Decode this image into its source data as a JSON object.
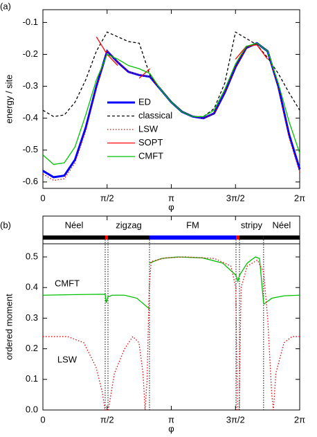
{
  "chart_data": [
    {
      "type": "line",
      "panel_label": "(a)",
      "ylabel": "energy / site",
      "xlabel": "φ",
      "legend": "center",
      "xlim": [
        0,
        6.2832
      ],
      "ylim": [
        -0.62,
        -0.06
      ],
      "xticks": [
        0,
        {
          "value": 1.5708,
          "label": "π/2"
        },
        {
          "value": 3.1416,
          "label": "π"
        },
        {
          "value": 4.7124,
          "label": "3π/2"
        },
        {
          "value": 6.2832,
          "label": "2π"
        }
      ],
      "yticks": [
        -0.1,
        -0.2,
        -0.3,
        -0.4,
        -0.5,
        -0.6
      ],
      "x": [
        0,
        0.2618,
        0.5236,
        0.7854,
        1.0472,
        1.309,
        1.5708,
        1.8326,
        2.0944,
        2.3562,
        2.618,
        2.8798,
        3.1416,
        3.4034,
        3.6652,
        3.927,
        4.1888,
        4.4506,
        4.7124,
        4.9742,
        5.236,
        5.4978,
        5.7596,
        6.0214,
        6.2832
      ],
      "series": [
        {
          "name": "ED",
          "color": "#0000ff",
          "style": "thick",
          "values": [
            -0.565,
            -0.585,
            -0.58,
            -0.53,
            -0.43,
            -0.3,
            -0.19,
            -0.225,
            -0.255,
            -0.265,
            -0.27,
            -0.31,
            -0.35,
            -0.38,
            -0.395,
            -0.4,
            -0.385,
            -0.32,
            -0.24,
            -0.18,
            -0.165,
            -0.19,
            -0.3,
            -0.45,
            -0.56
          ]
        },
        {
          "name": "classical",
          "color": "#000000",
          "style": "dashed",
          "values": [
            -0.375,
            -0.395,
            -0.39,
            -0.35,
            -0.28,
            -0.19,
            -0.13,
            -0.145,
            -0.16,
            -0.165,
            -0.265,
            -0.31,
            -0.35,
            -0.38,
            -0.395,
            -0.395,
            -0.37,
            -0.29,
            -0.13,
            -0.15,
            -0.17,
            -0.21,
            -0.26,
            -0.32,
            -0.375
          ]
        },
        {
          "name": "LSW",
          "color": "#e00000",
          "style": "dotted",
          "values": [
            -0.575,
            -0.595,
            -0.59,
            -0.54,
            -0.44,
            -0.305,
            -0.19,
            -0.225,
            -0.255,
            -0.265,
            -0.27,
            -0.31,
            -0.35,
            -0.38,
            -0.395,
            -0.4,
            -0.385,
            -0.32,
            -0.24,
            -0.18,
            -0.165,
            -0.19,
            -0.305,
            -0.46,
            -0.57
          ]
        },
        {
          "name": "SOPT",
          "color": "#ff0000",
          "style": "solid",
          "values": [
            null,
            null,
            null,
            null,
            null,
            -0.145,
            -0.2,
            -0.235,
            null,
            -0.275,
            -0.245,
            null,
            null,
            null,
            null,
            null,
            null,
            null,
            -0.215,
            -0.175,
            -0.17,
            -0.215,
            null,
            null,
            null
          ]
        },
        {
          "name": "CMFT",
          "color": "#00c000",
          "style": "solid",
          "values": [
            -0.515,
            -0.545,
            -0.54,
            -0.49,
            -0.39,
            -0.28,
            -0.2,
            -0.215,
            -0.235,
            -0.245,
            -0.26,
            -0.31,
            -0.35,
            -0.38,
            -0.395,
            -0.395,
            -0.375,
            -0.31,
            -0.23,
            -0.175,
            -0.165,
            -0.19,
            -0.29,
            -0.41,
            -0.51
          ]
        }
      ]
    },
    {
      "type": "line",
      "panel_label": "(b)",
      "ylabel": "ordered moment",
      "xlabel": "φ",
      "xlim": [
        0,
        6.2832
      ],
      "ylim": [
        0,
        0.543
      ],
      "xticks": [
        0,
        {
          "value": 1.5708,
          "label": "π/2"
        },
        {
          "value": 3.1416,
          "label": "π"
        },
        {
          "value": 4.7124,
          "label": "3π/2"
        },
        {
          "value": 6.2832,
          "label": "2π"
        }
      ],
      "yticks": [
        {
          "value": 0,
          "label": "0.0"
        },
        0.1,
        0.2,
        0.3,
        0.4,
        0.5
      ],
      "phases": [
        {
          "label": "Néel",
          "range": [
            0,
            1.524
          ],
          "color": "#000000"
        },
        {
          "range": [
            1.524,
            1.592
          ],
          "color": "#ff0000"
        },
        {
          "label": "zigzag",
          "range": [
            1.592,
            2.608
          ],
          "color": "#000000"
        },
        {
          "label": "FM",
          "range": [
            2.608,
            4.725
          ],
          "color": "#0000ff"
        },
        {
          "range": [
            4.725,
            4.81
          ],
          "color": "#ff0000"
        },
        {
          "label": "stripy",
          "range": [
            4.81,
            5.4
          ],
          "color": "#000000"
        },
        {
          "label": "Néel",
          "range": [
            5.4,
            6.2832
          ],
          "color": "#000000"
        }
      ],
      "annotations": [
        "CMFT",
        "LSW"
      ],
      "series": [
        {
          "name": "CMFT",
          "color": "#00c000",
          "style": "solid",
          "x": [
            0,
            0.8,
            1.4,
            1.524,
            1.55,
            1.592,
            1.7,
            2.0,
            2.3,
            2.608,
            2.608,
            2.608,
            2.9,
            3.3,
            3.9,
            4.4,
            4.725,
            4.77,
            4.81,
            5.0,
            5.2,
            5.3,
            5.4,
            5.4,
            5.4,
            5.6,
            5.9,
            6.2832
          ],
          "values": [
            0.375,
            0.377,
            0.378,
            0.378,
            0.35,
            0.37,
            0.375,
            0.375,
            0.365,
            0.33,
            null,
            0.48,
            0.495,
            0.5,
            0.497,
            0.48,
            0.44,
            0.42,
            0.44,
            0.48,
            0.5,
            0.495,
            0.35,
            null,
            0.345,
            0.365,
            0.373,
            0.375
          ]
        },
        {
          "name": "LSW",
          "color": "#e00000",
          "style": "dotted",
          "x": [
            0,
            0.6,
            1.0,
            1.3,
            1.45,
            1.52,
            1.6,
            1.75,
            2.0,
            2.2,
            2.35,
            2.45,
            2.5,
            2.55,
            2.6,
            2.65,
            3.0,
            3.5,
            4.2,
            4.6,
            4.72,
            4.76,
            4.8,
            4.85,
            5.0,
            5.25,
            5.4,
            5.5,
            5.6,
            5.64,
            5.7,
            5.9,
            6.1,
            6.2832
          ],
          "values": [
            0.24,
            0.24,
            0.22,
            0.14,
            0.06,
            0,
            0,
            0.12,
            0.2,
            0.24,
            0.22,
            0.12,
            0,
            0.1,
            0.4,
            0.485,
            0.497,
            0.5,
            0.495,
            0.47,
            0.4,
            0,
            0,
            0.4,
            0.47,
            0.49,
            0.45,
            0.3,
            0.05,
            0,
            0.12,
            0.22,
            0.24,
            0.24
          ]
        }
      ]
    }
  ]
}
